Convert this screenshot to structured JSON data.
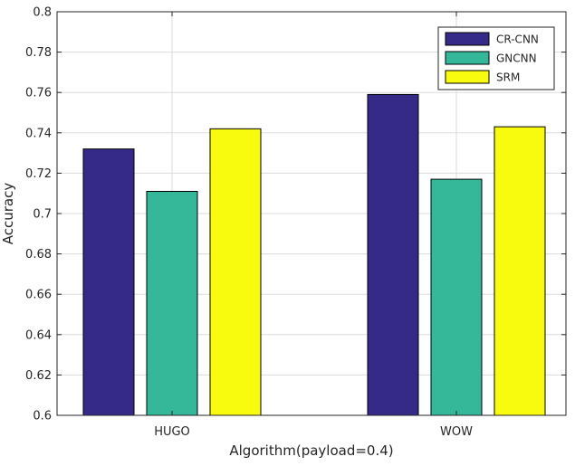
{
  "chart_data": {
    "type": "bar",
    "title": "",
    "xlabel": "Algorithm(payload=0.4)",
    "ylabel": "Accuracy",
    "categories": [
      "HUGO",
      "WOW"
    ],
    "series": [
      {
        "name": "CR-CNN",
        "color": "#352a87",
        "values": [
          0.732,
          0.759
        ]
      },
      {
        "name": "GNCNN",
        "color": "#35b79a",
        "values": [
          0.711,
          0.717
        ]
      },
      {
        "name": "SRM",
        "color": "#f9fb0e",
        "values": [
          0.742,
          0.743
        ]
      }
    ],
    "ylim": [
      0.6,
      0.8
    ],
    "yticks": [
      "0.6",
      "0.62",
      "0.64",
      "0.66",
      "0.68",
      "0.7",
      "0.72",
      "0.74",
      "0.76",
      "0.78",
      "0.8"
    ],
    "grid": true,
    "legend_position": "top-right"
  }
}
